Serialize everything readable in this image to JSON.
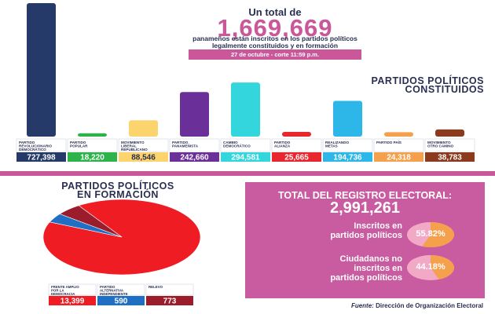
{
  "header": {
    "line1": "Un total de",
    "big_number": "1,669,669",
    "line2": "panameños están inscritos en los partidos políticos",
    "line3": "legalmente constituidos y en formación",
    "date_badge": "27 de octubre - corte 11:59 p.m."
  },
  "constituted_title": {
    "line1": "PARTIDOS POLÍTICOS",
    "line2": "CONSTITUIDOS"
  },
  "formation_title": {
    "line1": "PARTIDOS POLÍTICOS",
    "line2": "EN FORMACIÓN"
  },
  "chart_data": [
    {
      "type": "bar",
      "categories": [
        "PARTIDO REVOLUCIONARIO DEMOCRÁTICO",
        "PARTIDO POPULAR",
        "MOVIMIENTO LIBERAL REPUBLICANO NACIONALISTA",
        "PARTIDO PANAMEÑISTA",
        "CAMBIO DEMOCRÁTICO",
        "PARTIDO ALIANZA",
        "REALIZANDO METAS",
        "PARTIDO PAÍS",
        "MOVIMIENTO OTRO CAMINO"
      ],
      "values": [
        727398,
        18220,
        88546,
        242660,
        294581,
        25665,
        194736,
        24318,
        38783
      ],
      "value_labels": [
        "727,398",
        "18,220",
        "88,546",
        "242,660",
        "294,581",
        "25,665",
        "194,736",
        "24,318",
        "38,783"
      ],
      "colors": [
        "#253a68",
        "#2db34a",
        "#fbd46d",
        "#6b2f9a",
        "#33d6dc",
        "#e8262d",
        "#2cb7e8",
        "#f4a04c",
        "#8b3a1e"
      ],
      "ylim": [
        0,
        727398
      ]
    },
    {
      "type": "pie",
      "categories": [
        "FRENTE AMPLIO POR LA DEMOCRACIA",
        "PARTIDO ALTERNATIVA INDEPENDIENTE SOCIAL",
        "RELEVO"
      ],
      "values": [
        13399,
        590,
        773
      ],
      "value_labels": [
        "13,399",
        "590",
        "773"
      ],
      "colors": [
        "#ef1c24",
        "#1f6fc4",
        "#9b1c2a"
      ]
    }
  ],
  "registry": {
    "title": "TOTAL DEL REGISTRO ELECTORAL:",
    "total": "2,991,261",
    "inscribed_label_1": "Inscritos en",
    "inscribed_label_2": "partidos políticos",
    "inscribed_pct": 55.82,
    "inscribed_pct_label": "55.82%",
    "not_inscribed_label_1": "Ciudadanos no",
    "not_inscribed_label_2": "inscritos en",
    "not_inscribed_label_3": "partidos políticos",
    "not_inscribed_pct": 44.18,
    "not_inscribed_pct_label": "44.18%",
    "pie_fill": "#f4a04c",
    "pie_rest": "#f1a9c6"
  },
  "source": {
    "prefix": "Fuente:",
    "text": "Dirección de Organización Electoral"
  }
}
